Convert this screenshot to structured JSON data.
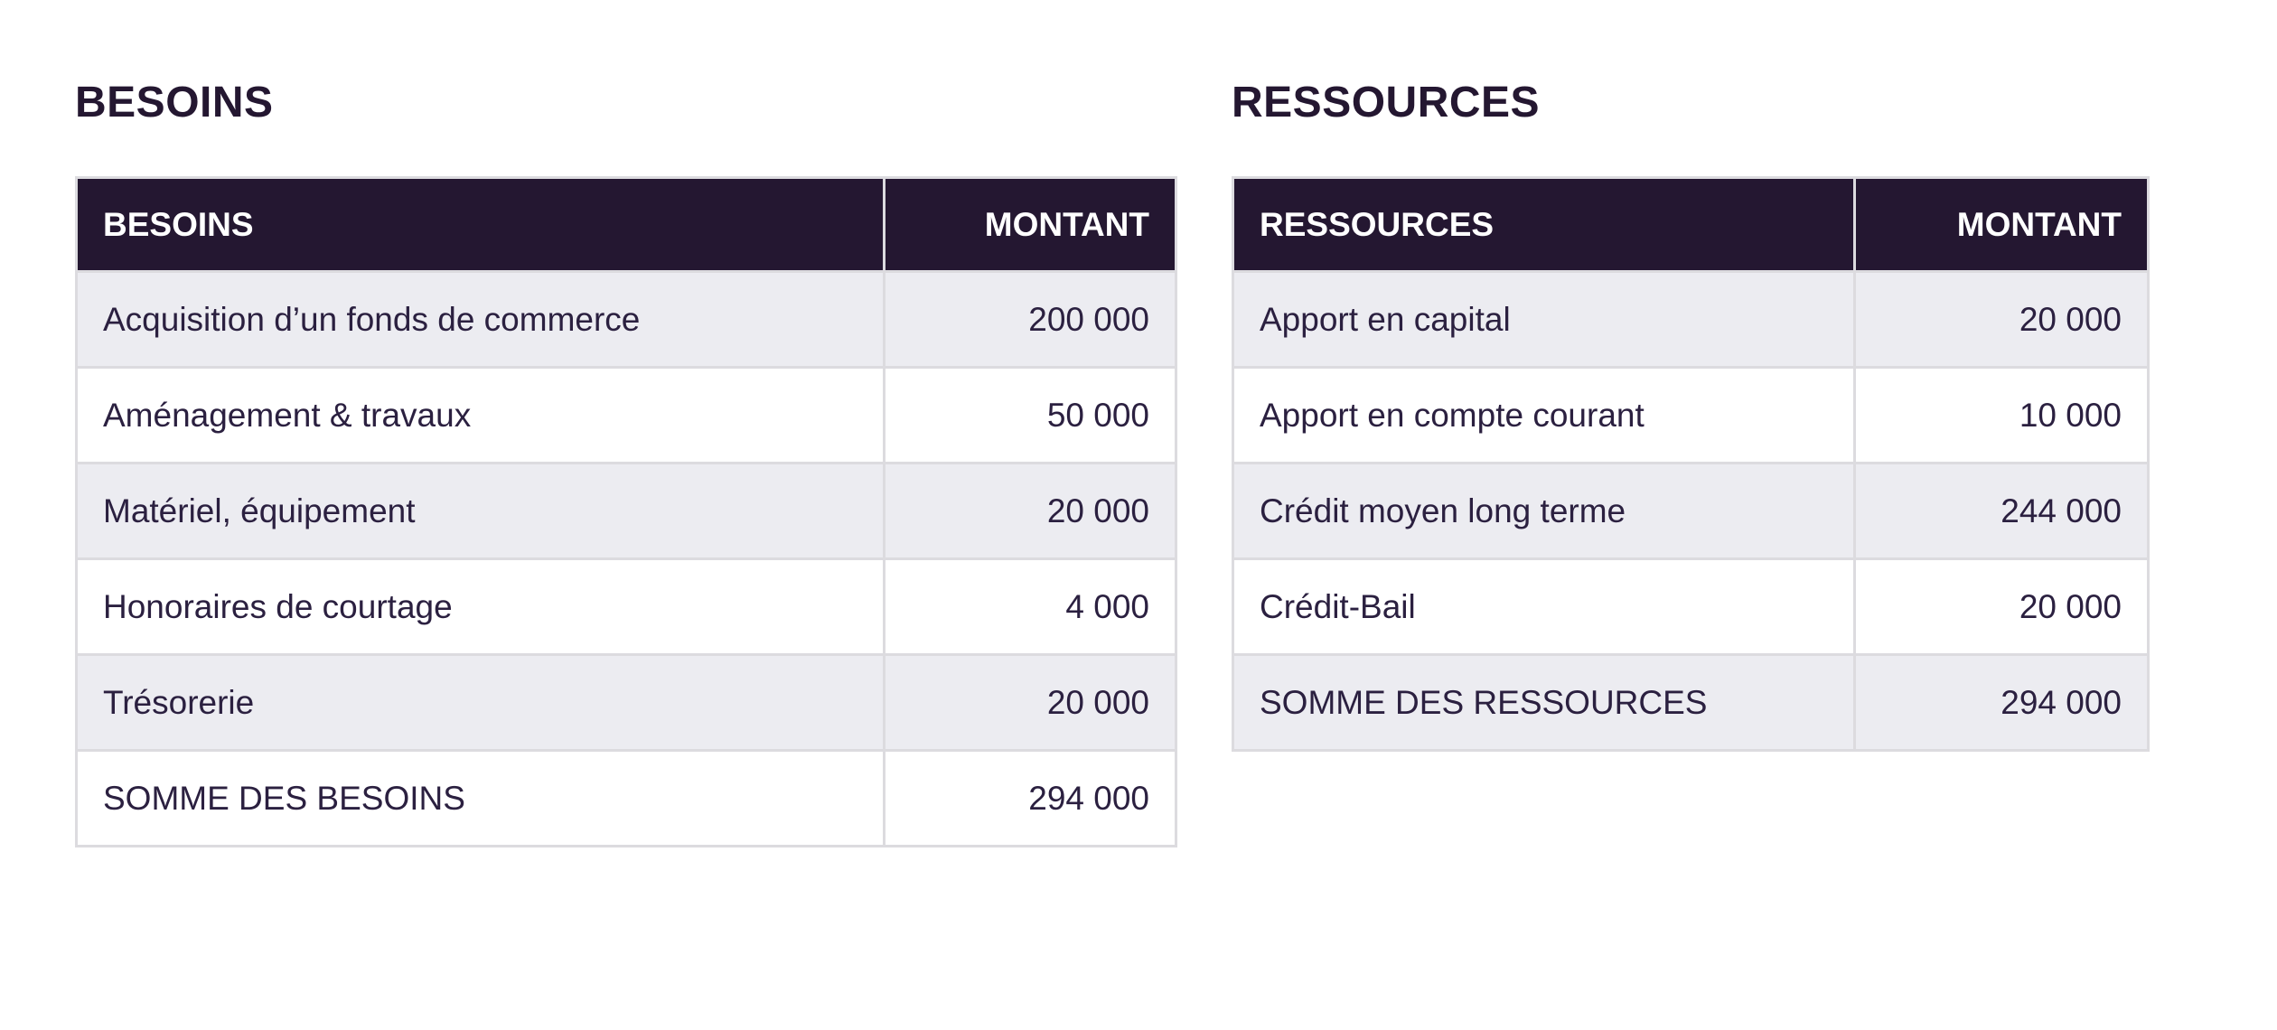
{
  "colors": {
    "header_bg": "#241731",
    "header_text": "#ffffff",
    "row_alt_bg": "#ececf1",
    "row_bg": "#ffffff",
    "cell_text": "#2b2040",
    "title_text": "#241731",
    "grid_border": "#dcdbdf",
    "page_bg": "#ffffff"
  },
  "besoins": {
    "title": "BESOINS",
    "columns": {
      "label": "BESOINS",
      "amount": "MONTANT"
    },
    "rows": [
      {
        "label": "Acquisition d’un fonds de commerce",
        "amount": "200 000"
      },
      {
        "label": "Aménagement & travaux",
        "amount": "50 000"
      },
      {
        "label": "Matériel, équipement",
        "amount": "20 000"
      },
      {
        "label": "Honoraires de courtage",
        "amount": "4 000"
      },
      {
        "label": "Trésorerie",
        "amount": "20 000"
      },
      {
        "label": "SOMME DES BESOINS",
        "amount": "294 000"
      }
    ]
  },
  "ressources": {
    "title": "RESSOURCES",
    "columns": {
      "label": "RESSOURCES",
      "amount": "MONTANT"
    },
    "rows": [
      {
        "label": "Apport en capital",
        "amount": "20 000"
      },
      {
        "label": "Apport en compte courant",
        "amount": "10 000"
      },
      {
        "label": "Crédit moyen long terme",
        "amount": "244 000"
      },
      {
        "label": "Crédit-Bail",
        "amount": "20 000"
      },
      {
        "label": "SOMME DES RESSOURCES",
        "amount": "294 000"
      }
    ]
  }
}
